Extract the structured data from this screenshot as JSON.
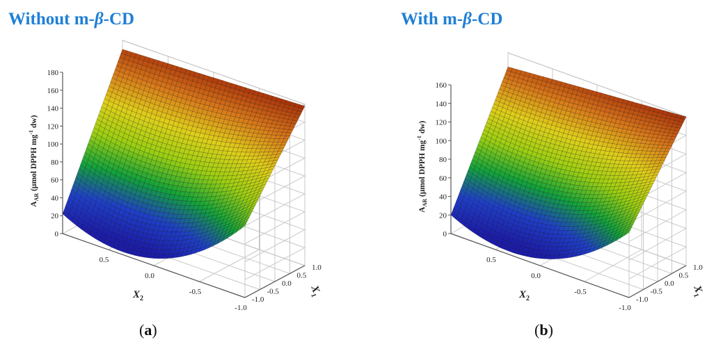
{
  "chart_data": [
    {
      "type": "surface",
      "title_prefix": "Without m-",
      "title_greek": "β",
      "title_suffix": "-CD",
      "panel_letter": "a",
      "zlabel": "A_AR (μmol DPPH mg⁻¹ dw)",
      "zlabel_parts": {
        "main": "A",
        "sub": "AR",
        "unit": " (μmol DPPH mg",
        "sup": "-1",
        "tail": " dw)"
      },
      "xlabel_main": "X",
      "xlabel_sub": "1",
      "ylabel_main": "X",
      "ylabel_sub": "2",
      "z_ticks": [
        0,
        20,
        40,
        60,
        80,
        100,
        120,
        140,
        160,
        180
      ],
      "zlim": [
        0,
        180
      ],
      "x1_ticks": [
        "-1.0",
        "-0.5",
        "0.0",
        "0.5",
        "1.0"
      ],
      "x2_ticks": [
        "0.5",
        "0.0",
        "-0.5",
        "-1.0"
      ],
      "x1_range": [
        -1,
        1
      ],
      "x2_range": [
        -1,
        1
      ],
      "corners": {
        "x1m1_x2p1": 22,
        "x1m1_x2m1": 80,
        "x1p1_x2p1": 170,
        "x1p1_x2m1": 178
      },
      "min_value": 12,
      "colormap": [
        "#1c1ca8",
        "#1f3fc7",
        "#12a33a",
        "#9ccf12",
        "#e0cf1a",
        "#d8781a",
        "#a8300a"
      ],
      "grid": true
    },
    {
      "type": "surface",
      "title_prefix": "With m-",
      "title_greek": "β",
      "title_suffix": "-CD",
      "panel_letter": "b",
      "zlabel": "A_AR (μmol DPPH mg⁻¹ dw)",
      "zlabel_parts": {
        "main": "A",
        "sub": "AR",
        "unit": " (μmol DPPH mg",
        "sup": "-1",
        "tail": " dw)"
      },
      "xlabel_main": "X",
      "xlabel_sub": "1",
      "ylabel_main": "X",
      "ylabel_sub": "2",
      "z_ticks": [
        0,
        20,
        40,
        60,
        80,
        100,
        120,
        140,
        160
      ],
      "zlim": [
        0,
        160
      ],
      "x1_ticks": [
        "-1.0",
        "-0.5",
        "0.0",
        "0.5",
        "1.0"
      ],
      "x2_ticks": [
        "0.5",
        "0.0",
        "-0.5",
        "-1.0"
      ],
      "x1_range": [
        -1,
        1
      ],
      "x2_range": [
        -1,
        1
      ],
      "corners": {
        "x1m1_x2p1": 20,
        "x1m1_x2m1": 70,
        "x1p1_x2p1": 145,
        "x1p1_x2m1": 160
      },
      "min_value": 11,
      "colormap": [
        "#1c1ca8",
        "#1f3fc7",
        "#12a33a",
        "#9ccf12",
        "#e0cf1a",
        "#d8781a",
        "#a8300a"
      ],
      "grid": true
    }
  ]
}
